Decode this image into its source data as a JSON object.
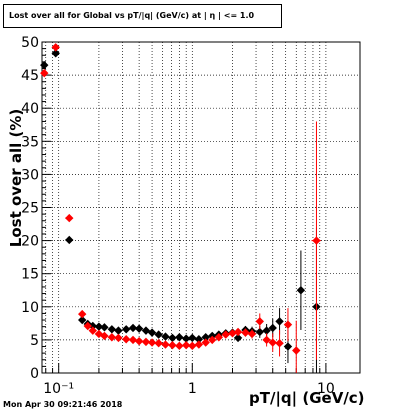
{
  "title": "Lost over all for Global vs pT/|q| (GeV/c) at | η | <= 1.0",
  "timestamp": "Mon Apr 30 09:21:46 2018",
  "colors": {
    "series_black": "#000000",
    "series_red": "#ff0000",
    "grid": "#000000"
  },
  "chart_data": {
    "type": "scatter",
    "xlabel": "pT/|q| (GeV/c)",
    "ylabel": "Lost over all (%)",
    "xscale": "log",
    "xlim": [
      0.075,
      18
    ],
    "ylim": [
      0,
      50
    ],
    "grid": true,
    "xticks": [
      {
        "value": 0.1,
        "label": "10⁻¹"
      },
      {
        "value": 1,
        "label": "1"
      },
      {
        "value": 10,
        "label": "10"
      }
    ],
    "yticks": [
      0,
      5,
      10,
      15,
      20,
      25,
      30,
      35,
      40,
      45,
      50
    ],
    "series": [
      {
        "color": "#000000",
        "points": [
          {
            "x": 0.078,
            "y": 46.5,
            "xerr": 0.004,
            "yerr": 0
          },
          {
            "x": 0.095,
            "y": 48.3,
            "xerr": 0.006,
            "yerr": 0
          },
          {
            "x": 0.12,
            "y": 20.1,
            "xerr": 0.008,
            "yerr": 0
          },
          {
            "x": 0.15,
            "y": 8.0,
            "xerr": 0.006,
            "yerr": 0
          },
          {
            "x": 0.165,
            "y": 7.4,
            "xerr": 0.006,
            "yerr": 0
          },
          {
            "x": 0.18,
            "y": 7.1,
            "xerr": 0.006,
            "yerr": 0
          },
          {
            "x": 0.2,
            "y": 7.0,
            "xerr": 0.006,
            "yerr": 0
          },
          {
            "x": 0.22,
            "y": 6.9,
            "xerr": 0.006,
            "yerr": 0
          },
          {
            "x": 0.25,
            "y": 6.6,
            "xerr": 0.008,
            "yerr": 0
          },
          {
            "x": 0.28,
            "y": 6.4,
            "xerr": 0.01,
            "yerr": 0
          },
          {
            "x": 0.32,
            "y": 6.6,
            "xerr": 0.01,
            "yerr": 0
          },
          {
            "x": 0.36,
            "y": 6.8,
            "xerr": 0.01,
            "yerr": 0
          },
          {
            "x": 0.4,
            "y": 6.7,
            "xerr": 0.01,
            "yerr": 0
          },
          {
            "x": 0.45,
            "y": 6.4,
            "xerr": 0.015,
            "yerr": 0
          },
          {
            "x": 0.5,
            "y": 6.1,
            "xerr": 0.015,
            "yerr": 0
          },
          {
            "x": 0.56,
            "y": 5.8,
            "xerr": 0.015,
            "yerr": 0
          },
          {
            "x": 0.63,
            "y": 5.5,
            "xerr": 0.02,
            "yerr": 0
          },
          {
            "x": 0.71,
            "y": 5.3,
            "xerr": 0.02,
            "yerr": 0
          },
          {
            "x": 0.8,
            "y": 5.4,
            "xerr": 0.02,
            "yerr": 0
          },
          {
            "x": 0.9,
            "y": 5.2,
            "xerr": 0.03,
            "yerr": 0
          },
          {
            "x": 1.0,
            "y": 5.3,
            "xerr": 0.03,
            "yerr": 0.3
          },
          {
            "x": 1.12,
            "y": 5.1,
            "xerr": 0.03,
            "yerr": 0.3
          },
          {
            "x": 1.26,
            "y": 5.4,
            "xerr": 0.04,
            "yerr": 0.3
          },
          {
            "x": 1.41,
            "y": 5.6,
            "xerr": 0.05,
            "yerr": 0.3
          },
          {
            "x": 1.58,
            "y": 5.8,
            "xerr": 0.05,
            "yerr": 0.4
          },
          {
            "x": 1.78,
            "y": 6.0,
            "xerr": 0.05,
            "yerr": 0.4
          },
          {
            "x": 2.0,
            "y": 6.1,
            "xerr": 0.06,
            "yerr": 0.4
          },
          {
            "x": 2.2,
            "y": 5.3,
            "xerr": 0.07,
            "yerr": 0.5
          },
          {
            "x": 2.5,
            "y": 6.5,
            "xerr": 0.08,
            "yerr": 0.6
          },
          {
            "x": 2.8,
            "y": 6.3,
            "xerr": 0.09,
            "yerr": 0.7
          },
          {
            "x": 3.2,
            "y": 6.2,
            "xerr": 0.1,
            "yerr": 0.9
          },
          {
            "x": 3.6,
            "y": 6.4,
            "xerr": 0.12,
            "yerr": 1.0
          },
          {
            "x": 4.0,
            "y": 6.8,
            "xerr": 0.14,
            "yerr": 1.4
          },
          {
            "x": 4.5,
            "y": 7.8,
            "xerr": 0.15,
            "yerr": 2.0
          },
          {
            "x": 5.2,
            "y": 4.0,
            "xerr": 0.2,
            "yerr": 2.5
          },
          {
            "x": 6.5,
            "y": 12.5,
            "xerr": 0.3,
            "yerr": 6.0
          },
          {
            "x": 8.5,
            "y": 10.0,
            "xerr": 0.5,
            "yerr": 12.0
          }
        ]
      },
      {
        "color": "#ff0000",
        "points": [
          {
            "x": 0.078,
            "y": 45.3,
            "xerr": 0.004,
            "yerr": 0
          },
          {
            "x": 0.095,
            "y": 49.2,
            "xerr": 0.006,
            "yerr": 0
          },
          {
            "x": 0.12,
            "y": 23.4,
            "xerr": 0.008,
            "yerr": 0
          },
          {
            "x": 0.15,
            "y": 8.9,
            "xerr": 0.006,
            "yerr": 0
          },
          {
            "x": 0.165,
            "y": 7.1,
            "xerr": 0.006,
            "yerr": 0
          },
          {
            "x": 0.18,
            "y": 6.4,
            "xerr": 0.006,
            "yerr": 0
          },
          {
            "x": 0.2,
            "y": 5.9,
            "xerr": 0.006,
            "yerr": 0
          },
          {
            "x": 0.22,
            "y": 5.6,
            "xerr": 0.006,
            "yerr": 0
          },
          {
            "x": 0.25,
            "y": 5.4,
            "xerr": 0.008,
            "yerr": 0
          },
          {
            "x": 0.28,
            "y": 5.3,
            "xerr": 0.01,
            "yerr": 0
          },
          {
            "x": 0.32,
            "y": 5.1,
            "xerr": 0.01,
            "yerr": 0
          },
          {
            "x": 0.36,
            "y": 5.0,
            "xerr": 0.01,
            "yerr": 0
          },
          {
            "x": 0.4,
            "y": 4.8,
            "xerr": 0.01,
            "yerr": 0
          },
          {
            "x": 0.45,
            "y": 4.7,
            "xerr": 0.015,
            "yerr": 0
          },
          {
            "x": 0.5,
            "y": 4.6,
            "xerr": 0.015,
            "yerr": 0
          },
          {
            "x": 0.56,
            "y": 4.5,
            "xerr": 0.015,
            "yerr": 0
          },
          {
            "x": 0.63,
            "y": 4.3,
            "xerr": 0.02,
            "yerr": 0
          },
          {
            "x": 0.71,
            "y": 4.2,
            "xerr": 0.02,
            "yerr": 0
          },
          {
            "x": 0.8,
            "y": 4.1,
            "xerr": 0.02,
            "yerr": 0
          },
          {
            "x": 0.9,
            "y": 4.2,
            "xerr": 0.03,
            "yerr": 0
          },
          {
            "x": 1.0,
            "y": 4.1,
            "xerr": 0.03,
            "yerr": 0.3
          },
          {
            "x": 1.12,
            "y": 4.3,
            "xerr": 0.03,
            "yerr": 0.3
          },
          {
            "x": 1.26,
            "y": 4.6,
            "xerr": 0.04,
            "yerr": 0.3
          },
          {
            "x": 1.41,
            "y": 5.0,
            "xerr": 0.05,
            "yerr": 0.3
          },
          {
            "x": 1.58,
            "y": 5.4,
            "xerr": 0.05,
            "yerr": 0.4
          },
          {
            "x": 1.78,
            "y": 5.8,
            "xerr": 0.05,
            "yerr": 0.4
          },
          {
            "x": 2.0,
            "y": 6.0,
            "xerr": 0.06,
            "yerr": 0.4
          },
          {
            "x": 2.2,
            "y": 6.2,
            "xerr": 0.07,
            "yerr": 0.5
          },
          {
            "x": 2.5,
            "y": 6.1,
            "xerr": 0.08,
            "yerr": 0.6
          },
          {
            "x": 2.8,
            "y": 5.9,
            "xerr": 0.09,
            "yerr": 0.7
          },
          {
            "x": 3.2,
            "y": 7.8,
            "xerr": 0.1,
            "yerr": 1.2
          },
          {
            "x": 3.6,
            "y": 5.0,
            "xerr": 0.12,
            "yerr": 1.0
          },
          {
            "x": 4.0,
            "y": 4.6,
            "xerr": 0.14,
            "yerr": 1.4
          },
          {
            "x": 4.5,
            "y": 4.5,
            "xerr": 0.15,
            "yerr": 2.0
          },
          {
            "x": 5.2,
            "y": 7.3,
            "xerr": 0.2,
            "yerr": 2.5
          },
          {
            "x": 6.0,
            "y": 3.4,
            "xerr": 0.3,
            "yerr": 4.5
          },
          {
            "x": 8.5,
            "y": 20.0,
            "xerr": 0.7,
            "yerr": 18.0
          }
        ]
      }
    ]
  }
}
